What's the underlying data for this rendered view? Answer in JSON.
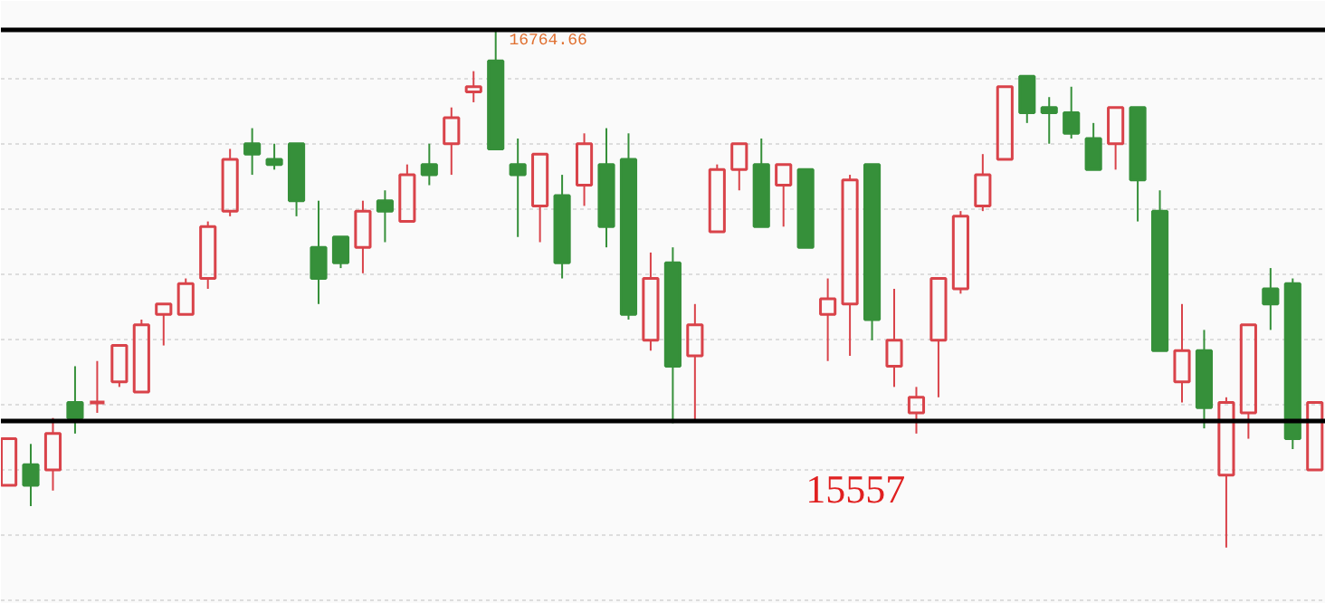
{
  "chart_data": {
    "type": "candlestick",
    "grid": "y",
    "tick_labels": false,
    "ylim": [
      14992,
      16854
    ],
    "yticks": [
      {
        "value": 15004,
        "label": null
      },
      {
        "value": 15205,
        "label": null
      },
      {
        "value": 15406,
        "label": null
      },
      {
        "value": 15607,
        "label": null
      },
      {
        "value": 15809,
        "label": null
      },
      {
        "value": 16010,
        "label": null
      },
      {
        "value": 16211,
        "label": null
      },
      {
        "value": 16412,
        "label": null
      },
      {
        "value": 16614,
        "label": null
      }
    ],
    "categories": [
      null,
      null,
      null,
      null,
      null,
      null,
      null,
      null,
      null,
      null,
      null,
      null,
      null,
      null,
      null,
      null,
      null,
      null,
      null,
      null,
      null,
      null,
      null,
      null,
      null,
      null,
      null,
      null,
      null,
      null,
      null,
      null,
      null,
      null,
      null,
      null,
      null,
      null,
      null,
      null,
      null,
      null,
      null,
      null,
      null,
      null,
      null,
      null,
      null,
      null,
      null,
      null,
      null,
      null,
      null,
      null,
      null,
      null,
      null,
      null
    ],
    "ohlc": [
      [
        15358,
        15502,
        15358,
        15502
      ],
      [
        15422,
        15486,
        15294,
        15358
      ],
      [
        15406,
        15566,
        15342,
        15518
      ],
      [
        15614,
        15726,
        15518,
        15566
      ],
      [
        15614,
        15742,
        15582,
        15614
      ],
      [
        15678,
        15790,
        15662,
        15790
      ],
      [
        15646,
        15870,
        15646,
        15854
      ],
      [
        15886,
        15918,
        15790,
        15918
      ],
      [
        15886,
        15997,
        15886,
        15981
      ],
      [
        15997,
        16173,
        15965,
        16157
      ],
      [
        16205,
        16397,
        16189,
        16365
      ],
      [
        16413,
        16461,
        16317,
        16381
      ],
      [
        16365,
        16413,
        16333,
        16349
      ],
      [
        16413,
        16413,
        16189,
        16237
      ],
      [
        16093,
        16237,
        15918,
        15997
      ],
      [
        16125,
        16125,
        16029,
        16045
      ],
      [
        16093,
        16237,
        16013,
        16205
      ],
      [
        16237,
        16269,
        16109,
        16205
      ],
      [
        16173,
        16349,
        16173,
        16317
      ],
      [
        16349,
        16413,
        16285,
        16317
      ],
      [
        16413,
        16525,
        16317,
        16493
      ],
      [
        16573,
        16637,
        16541,
        16589
      ],
      [
        16669,
        16764.66,
        16397,
        16397
      ],
      [
        16349,
        16429,
        16125,
        16317
      ],
      [
        16221,
        16381,
        16109,
        16381
      ],
      [
        16253,
        16317,
        15997,
        16045
      ],
      [
        16285,
        16445,
        16221,
        16413
      ],
      [
        16349,
        16461,
        16093,
        16157
      ],
      [
        16365,
        16445,
        15870,
        15886
      ],
      [
        15806,
        16077,
        15774,
        15997
      ],
      [
        16045,
        16093,
        15550,
        15726
      ],
      [
        15758,
        15918,
        15557,
        15854
      ],
      [
        16141,
        16349,
        16141,
        16333
      ],
      [
        16333,
        16413,
        16269,
        16413
      ],
      [
        16349,
        16429,
        16157,
        16157
      ],
      [
        16285,
        16349,
        16157,
        16349
      ],
      [
        16333,
        16333,
        16093,
        16093
      ],
      [
        15886,
        15997,
        15742,
        15934
      ],
      [
        15918,
        16317,
        15758,
        16301
      ],
      [
        16349,
        16349,
        15806,
        15870
      ],
      [
        15726,
        15965,
        15662,
        15806
      ],
      [
        15582,
        15662,
        15518,
        15630
      ],
      [
        15806,
        15997,
        15630,
        15997
      ],
      [
        15965,
        16205,
        15950,
        16189
      ],
      [
        16221,
        16381,
        16205,
        16317
      ],
      [
        16365,
        16589,
        16365,
        16589
      ],
      [
        16621,
        16621,
        16477,
        16509
      ],
      [
        16525,
        16557,
        16413,
        16509
      ],
      [
        16509,
        16589,
        16429,
        16445
      ],
      [
        16429,
        16477,
        16333,
        16333
      ],
      [
        16413,
        16525,
        16333,
        16525
      ],
      [
        16525,
        16525,
        16173,
        16301
      ],
      [
        16205,
        16269,
        15774,
        15774
      ],
      [
        15678,
        15918,
        15614,
        15774
      ],
      [
        15774,
        15838,
        15534,
        15598
      ],
      [
        15390,
        15630,
        15166,
        15614
      ],
      [
        15582,
        15854,
        15502,
        15854
      ],
      [
        15965,
        16029,
        15838,
        15918
      ],
      [
        15981,
        15997,
        15470,
        15502
      ],
      [
        15406,
        15614,
        15406,
        15614
      ]
    ],
    "ref_lines": [
      {
        "axis": "y",
        "value": 16764.66,
        "label": "16764.66",
        "color": "#000000"
      },
      {
        "axis": "y",
        "value": 15557,
        "label": "15557",
        "color": "#000000"
      }
    ]
  }
}
